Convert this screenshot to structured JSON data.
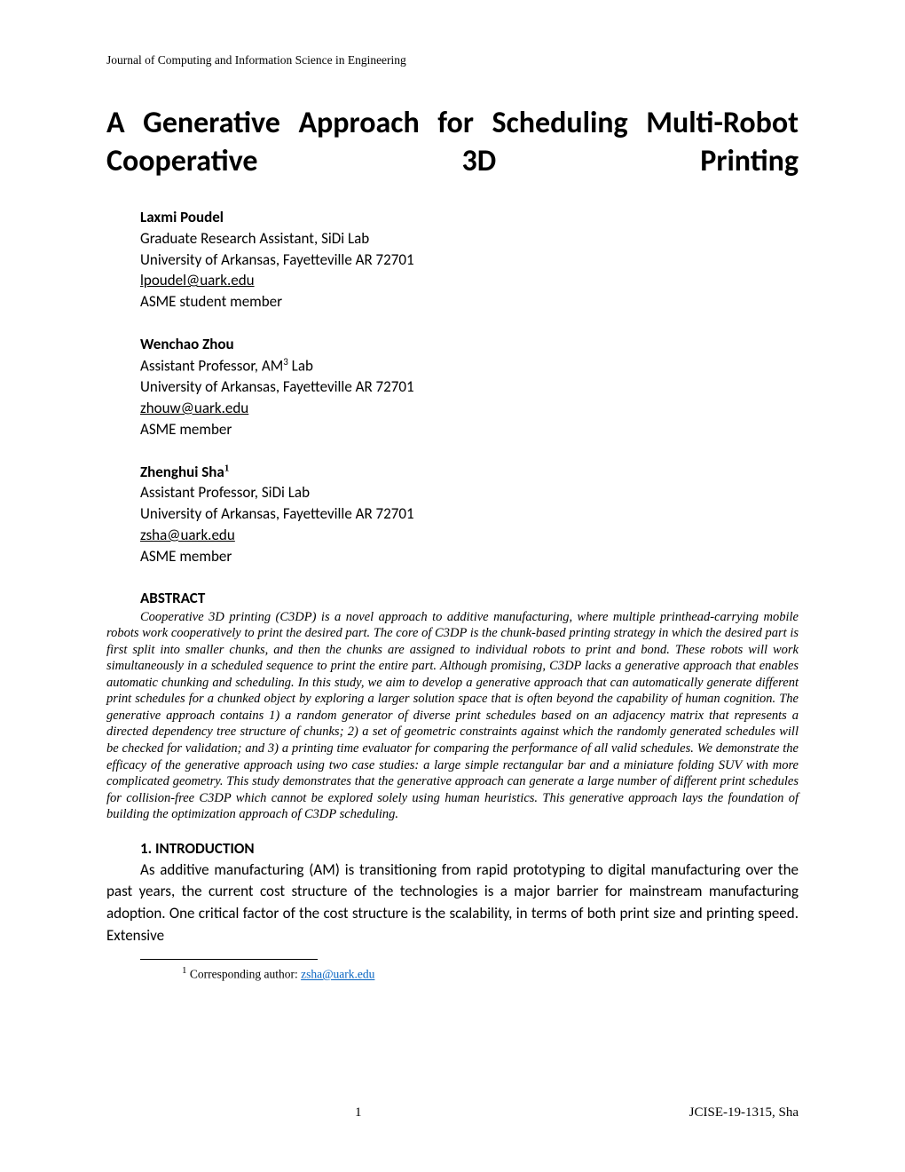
{
  "journal": "Journal of Computing and Information Science in Engineering",
  "title": "A Generative Approach for Scheduling Multi-Robot Cooperative 3D Printing",
  "authors": [
    {
      "name": "Laxmi Poudel",
      "role": "Graduate Research Assistant, SiDi Lab",
      "affiliation": "University of Arkansas, Fayetteville AR 72701",
      "email": "lpoudel@uark.edu",
      "membership": "ASME student member",
      "footnote": ""
    },
    {
      "name": "Wenchao Zhou",
      "role": "Assistant Professor, AM",
      "role_sup": "3",
      "role_suffix": " Lab",
      "affiliation": "University of Arkansas, Fayetteville AR 72701",
      "email": "zhouw@uark.edu",
      "membership": "ASME member",
      "footnote": ""
    },
    {
      "name": "Zhenghui Sha",
      "role": "Assistant Professor, SiDi Lab",
      "affiliation": "University of Arkansas, Fayetteville AR 72701",
      "email": "zsha@uark.edu",
      "membership": "ASME member",
      "footnote": "1"
    }
  ],
  "abstract_heading": "ABSTRACT",
  "abstract": "Cooperative 3D printing (C3DP) is a novel approach to additive manufacturing, where multiple printhead-carrying mobile robots work cooperatively to print the desired part. The core of C3DP is the chunk-based printing strategy in which the desired part is first split into smaller chunks, and then the chunks are assigned to individual robots to print and bond. These robots will work simultaneously in a scheduled sequence to print the entire part. Although promising, C3DP lacks a generative approach that enables automatic chunking and scheduling. In this study, we aim to develop a generative approach that can automatically generate different print schedules for a chunked object by exploring a larger solution space that is often beyond the capability of human cognition. The generative approach contains 1) a random generator of diverse print schedules based on an adjacency matrix that represents a directed dependency tree structure of chunks; 2) a set of geometric constraints against which the randomly generated schedules will be checked for validation; and 3) a printing time evaluator for comparing the performance of all valid schedules. We demonstrate the efficacy of the generative approach using two case studies: a large simple rectangular bar and a miniature folding SUV with more complicated geometry. This study demonstrates that the generative approach can generate a large number of different print schedules for collision-free C3DP which cannot be explored solely using human heuristics. This generative approach lays the foundation of building the optimization approach of C3DP scheduling.",
  "section_heading": "1.   INTRODUCTION",
  "intro_text": "As additive manufacturing (AM) is transitioning from rapid prototyping to digital manufacturing over the past years, the current cost structure of the technologies is a major barrier for mainstream manufacturing adoption. One critical factor of the cost structure is the scalability, in terms of both print size and printing speed.  Extensive",
  "footnote_marker": "1",
  "footnote_text_prefix": " Corresponding author: ",
  "footnote_email": "zsha@uark.edu",
  "page_number": "1",
  "footer_right": "JCISE-19-1315, Sha",
  "colors": {
    "text": "#000000",
    "background": "#ffffff",
    "link": "#0563c1"
  },
  "typography": {
    "title_fontsize": 34,
    "body_fontsize": 17,
    "header_fontsize": 13.5,
    "abstract_fontsize": 14.5,
    "footnote_fontsize": 13.5,
    "footer_fontsize": 15
  }
}
